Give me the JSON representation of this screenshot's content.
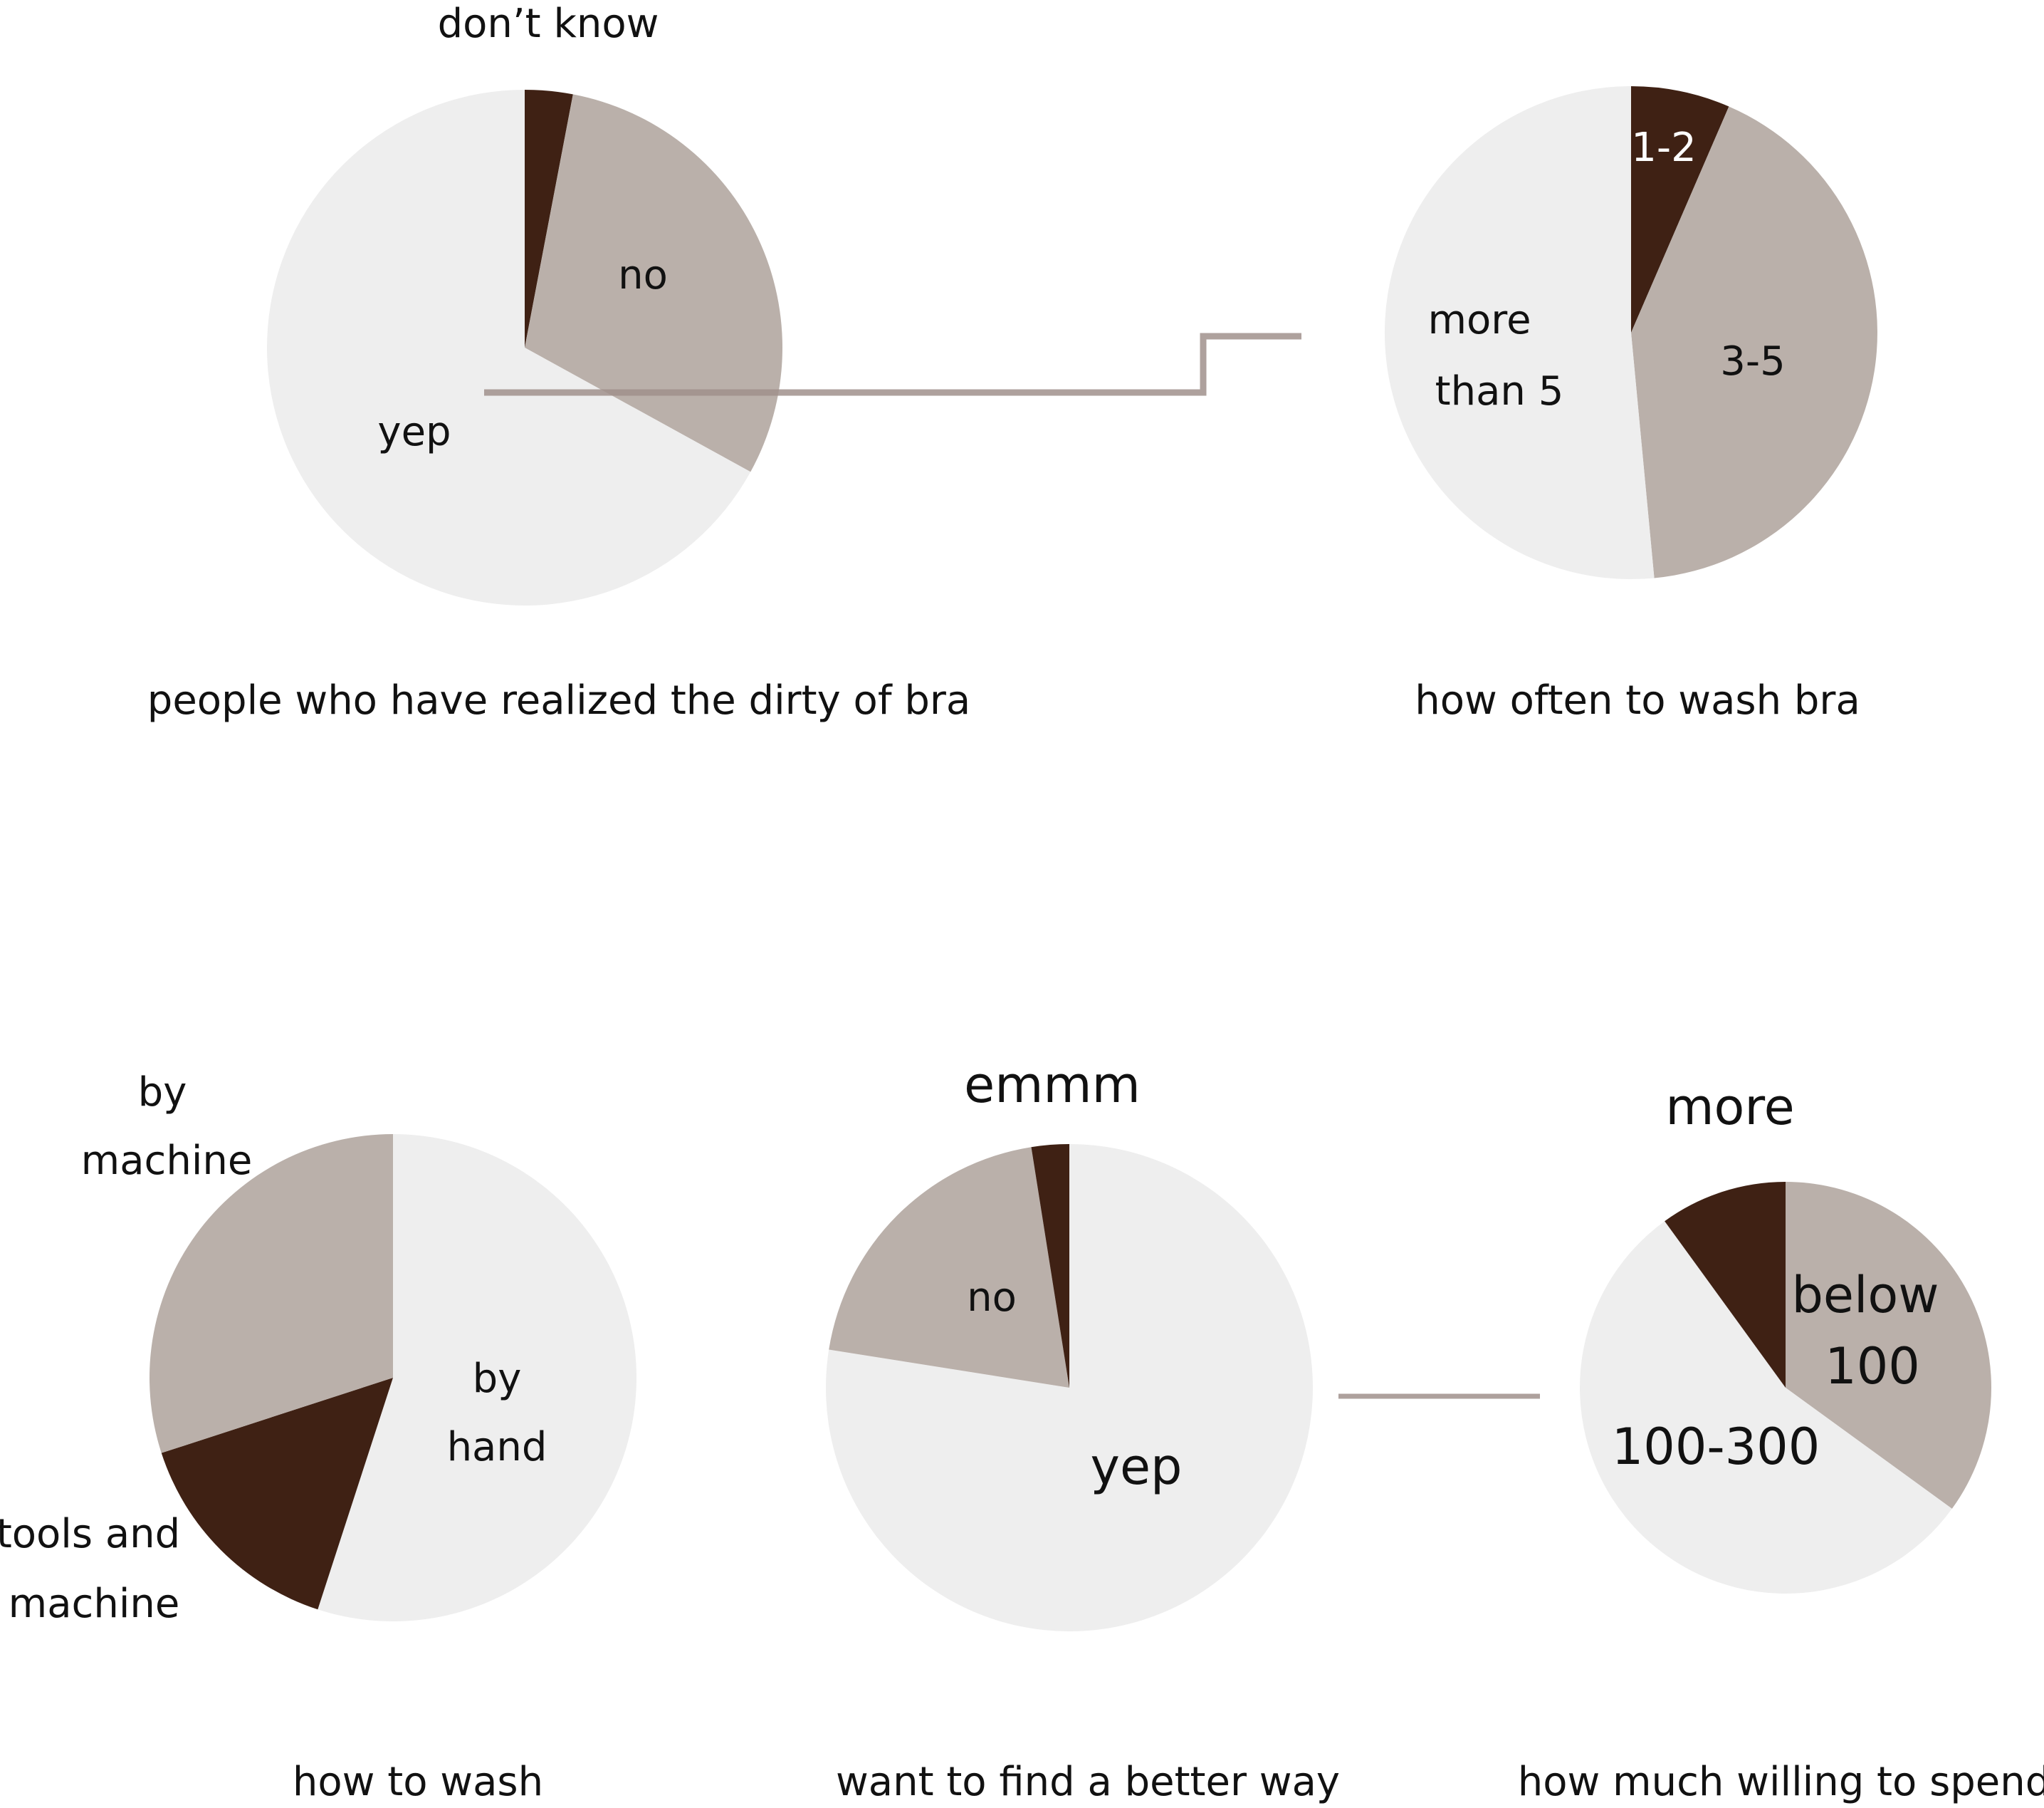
{
  "colors": {
    "dark": "#3f2114",
    "mid": "#bab0aa",
    "light": "#eeeeee",
    "connector": "#a0918c"
  },
  "chart_data": [
    {
      "type": "pie",
      "title": "people who have realized the dirty of bra",
      "slices": [
        {
          "label": "don’t know",
          "value": 3,
          "color": "#3f2114"
        },
        {
          "label": "no",
          "value": 30,
          "color": "#bab0aa"
        },
        {
          "label": "yep",
          "value": 67,
          "color": "#eeeeee"
        }
      ]
    },
    {
      "type": "pie",
      "title": "how often to wash bra",
      "slices": [
        {
          "label": "1-2",
          "value": 6.5,
          "color": "#3f2114"
        },
        {
          "label": "3-5",
          "value": 42,
          "color": "#bab0aa"
        },
        {
          "label": "more than 5",
          "value": 51.5,
          "color": "#eeeeee"
        }
      ]
    },
    {
      "type": "pie",
      "title": "how to wash",
      "slices": [
        {
          "label": "by hand",
          "value": 55,
          "color": "#eeeeee"
        },
        {
          "label": "tools and machine",
          "value": 15,
          "color": "#3f2114"
        },
        {
          "label": "by machine",
          "value": 30,
          "color": "#bab0aa"
        }
      ]
    },
    {
      "type": "pie",
      "title": "want to find a better way",
      "slices": [
        {
          "label": "yep",
          "value": 77.5,
          "color": "#eeeeee"
        },
        {
          "label": "no",
          "value": 20,
          "color": "#bab0aa"
        },
        {
          "label": "emmm",
          "value": 2.5,
          "color": "#3f2114"
        }
      ]
    },
    {
      "type": "pie",
      "title": "how much willing to spend",
      "slices": [
        {
          "label": "below 100",
          "value": 35,
          "color": "#bab0aa"
        },
        {
          "label": "100-300",
          "value": 55,
          "color": "#eeeeee"
        },
        {
          "label": "more",
          "value": 10,
          "color": "#3f2114"
        }
      ]
    }
  ],
  "labels": {
    "c1_dontknow": "don’t know",
    "c1_no": "no",
    "c1_yep": "yep",
    "c2_12": "1-2",
    "c2_35": "3-5",
    "c2_more": "more",
    "c2_than5": "than 5",
    "c3_by": "by",
    "c3_machine": "machine",
    "c3_hand_by": "by",
    "c3_hand": "hand",
    "c3_tools": "tools and",
    "c3_tools_machine": "machine",
    "c4_emmm": "emmm",
    "c4_no": "no",
    "c4_yep": "yep",
    "c5_more": "more",
    "c5_below": "below",
    "c5_100": "100",
    "c5_100300": "100-300"
  }
}
